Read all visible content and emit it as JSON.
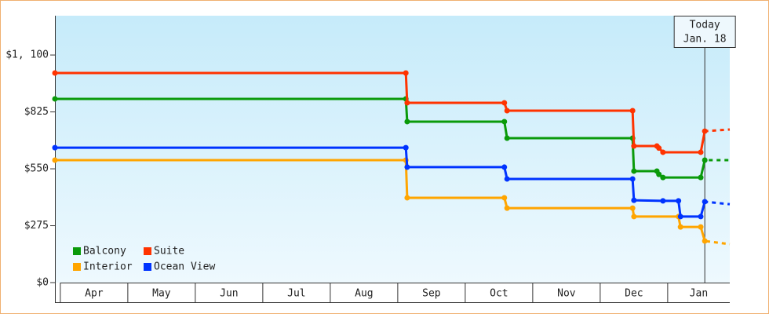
{
  "chart_data": {
    "type": "step-line",
    "xlim": [
      -0.08,
      9.92
    ],
    "xticks": [
      {
        "value": 0,
        "label": "Apr"
      },
      {
        "value": 1,
        "label": "May"
      },
      {
        "value": 2,
        "label": "Jun"
      },
      {
        "value": 3,
        "label": "Jul"
      },
      {
        "value": 4,
        "label": "Aug"
      },
      {
        "value": 5,
        "label": "Sep"
      },
      {
        "value": 6,
        "label": "Oct"
      },
      {
        "value": 7,
        "label": "Nov"
      },
      {
        "value": 8,
        "label": "Dec"
      },
      {
        "value": 9,
        "label": "Jan"
      }
    ],
    "ylim": [
      0,
      1290
    ],
    "yticks": [
      {
        "value": 0,
        "label": "$0"
      },
      {
        "value": 275,
        "label": "$275"
      },
      {
        "value": 550,
        "label": "$550"
      },
      {
        "value": 825,
        "label": "$825"
      },
      {
        "value": 1100,
        "label": "$1, 100"
      }
    ],
    "today": {
      "x": 9.55,
      "label": "Today",
      "date": "Jan. 18"
    },
    "series": [
      {
        "name": "Balcony",
        "color": "#0a9a0a",
        "x": [
          -0.08,
          5.12,
          5.14,
          6.58,
          6.62,
          8.48,
          8.5,
          8.84,
          8.87,
          8.93,
          9.49,
          9.55,
          9.92
        ],
        "values": [
          888,
          888,
          778,
          778,
          698,
          698,
          539,
          539,
          523,
          508,
          508,
          592,
          592
        ]
      },
      {
        "name": "Suite",
        "color": "#ff3300",
        "x": [
          -0.08,
          5.12,
          5.14,
          6.58,
          6.62,
          8.48,
          8.5,
          8.84,
          8.87,
          8.93,
          9.49,
          9.55,
          9.92
        ],
        "values": [
          1013,
          1013,
          869,
          869,
          831,
          831,
          660,
          660,
          650,
          630,
          630,
          732,
          740
        ]
      },
      {
        "name": "Interior",
        "color": "#ffa500",
        "x": [
          -0.08,
          5.12,
          5.14,
          6.58,
          6.62,
          8.48,
          8.5,
          9.16,
          9.19,
          9.49,
          9.55,
          9.92
        ],
        "values": [
          592,
          592,
          410,
          410,
          360,
          360,
          319,
          319,
          269,
          269,
          201,
          186
        ]
      },
      {
        "name": "Ocean View",
        "color": "#0033ff",
        "x": [
          -0.08,
          5.12,
          5.14,
          6.58,
          6.62,
          8.48,
          8.5,
          8.93,
          9.16,
          9.19,
          9.49,
          9.55,
          9.92
        ],
        "values": [
          652,
          652,
          558,
          558,
          501,
          501,
          398,
          395,
          395,
          319,
          319,
          391,
          379
        ]
      }
    ]
  }
}
